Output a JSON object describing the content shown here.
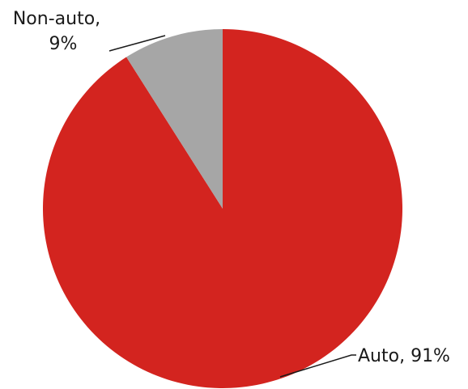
{
  "chart_data": {
    "type": "pie",
    "start_angle_deg": 0,
    "direction": "clockwise",
    "slices": [
      {
        "label": "Auto",
        "label_text": "Auto, 91%",
        "value": 91,
        "color": "#d3241f"
      },
      {
        "label": "Non-auto",
        "label_line1": "Non-auto,",
        "label_line2": "9%",
        "value": 9,
        "color": "#a6a6a6"
      }
    ],
    "legend": "none",
    "title": ""
  }
}
